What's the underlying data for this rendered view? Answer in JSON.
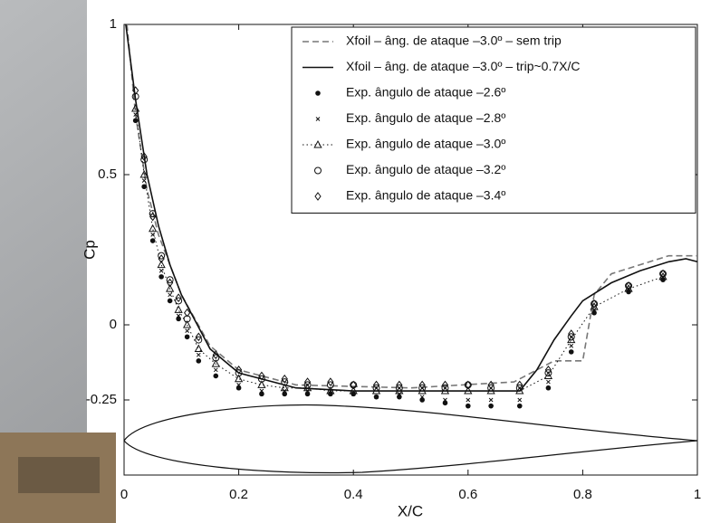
{
  "chart_data": {
    "type": "line",
    "xlabel": "X/C",
    "ylabel": "Cp",
    "xlim": [
      0,
      1
    ],
    "ylim": [
      -0.5,
      1
    ],
    "xticks": [
      0,
      0.2,
      0.4,
      0.6,
      0.8,
      1
    ],
    "yticks": [
      -0.25,
      0,
      0.5,
      1
    ],
    "legend": "upper right",
    "series": [
      {
        "name": "Xfoil – âng. de ataque –3.0º – sem trip",
        "color": "#777777",
        "style": "dashed",
        "x": [
          0.005,
          0.02,
          0.04,
          0.06,
          0.1,
          0.15,
          0.2,
          0.3,
          0.5,
          0.68,
          0.72,
          0.75,
          0.78,
          0.8,
          0.82,
          0.85,
          0.9,
          0.95,
          1
        ],
        "values": [
          1,
          0.7,
          0.45,
          0.3,
          0.1,
          -0.07,
          -0.15,
          -0.2,
          -0.21,
          -0.19,
          -0.15,
          -0.12,
          -0.12,
          -0.12,
          0.1,
          0.17,
          0.2,
          0.23,
          0.23
        ]
      },
      {
        "name": "Xfoil – âng. de ataque –3.0º – trip~0.7X/C",
        "color": "#111111",
        "style": "solid",
        "x": [
          0.003,
          0.02,
          0.04,
          0.06,
          0.08,
          0.1,
          0.15,
          0.2,
          0.3,
          0.4,
          0.5,
          0.6,
          0.69,
          0.72,
          0.75,
          0.78,
          0.8,
          0.85,
          0.9,
          0.95,
          0.98,
          1
        ],
        "values": [
          1,
          0.75,
          0.5,
          0.33,
          0.2,
          0.1,
          -0.08,
          -0.16,
          -0.21,
          -0.22,
          -0.22,
          -0.22,
          -0.22,
          -0.15,
          -0.05,
          0.03,
          0.08,
          0.14,
          0.18,
          0.21,
          0.22,
          0.21
        ]
      },
      {
        "name": "Exp. ângulo de ataque –2.6º",
        "color": "#111111",
        "marker": "dot",
        "x": [
          0.02,
          0.035,
          0.05,
          0.065,
          0.08,
          0.095,
          0.11,
          0.13,
          0.16,
          0.2,
          0.24,
          0.28,
          0.32,
          0.36,
          0.4,
          0.44,
          0.48,
          0.52,
          0.56,
          0.6,
          0.64,
          0.69,
          0.74,
          0.78,
          0.82,
          0.88,
          0.94
        ],
        "values": [
          0.68,
          0.46,
          0.28,
          0.16,
          0.08,
          0.02,
          -0.04,
          -0.12,
          -0.17,
          -0.21,
          -0.23,
          -0.23,
          -0.23,
          -0.23,
          -0.23,
          -0.24,
          -0.24,
          -0.25,
          -0.26,
          -0.27,
          -0.27,
          -0.27,
          -0.21,
          -0.09,
          0.04,
          0.11,
          0.15
        ]
      },
      {
        "name": "Exp. ângulo de ataque –2.8º",
        "color": "#111111",
        "marker": "cross",
        "x": [
          0.02,
          0.035,
          0.05,
          0.065,
          0.08,
          0.095,
          0.11,
          0.13,
          0.16,
          0.2,
          0.24,
          0.28,
          0.32,
          0.36,
          0.4,
          0.44,
          0.48,
          0.52,
          0.56,
          0.6,
          0.64,
          0.69,
          0.74,
          0.78,
          0.82,
          0.88,
          0.94
        ],
        "values": [
          0.7,
          0.48,
          0.3,
          0.18,
          0.1,
          0.03,
          -0.02,
          -0.1,
          -0.15,
          -0.2,
          -0.22,
          -0.22,
          -0.22,
          -0.22,
          -0.23,
          -0.24,
          -0.23,
          -0.24,
          -0.25,
          -0.25,
          -0.25,
          -0.25,
          -0.19,
          -0.07,
          0.05,
          0.12,
          0.16
        ]
      },
      {
        "name": "Exp. ângulo de ataque –3.0º",
        "color": "#111111",
        "marker": "triangle",
        "style": "dotted",
        "x": [
          0.02,
          0.035,
          0.05,
          0.065,
          0.08,
          0.095,
          0.11,
          0.13,
          0.16,
          0.2,
          0.24,
          0.28,
          0.32,
          0.36,
          0.4,
          0.44,
          0.48,
          0.52,
          0.56,
          0.6,
          0.64,
          0.69,
          0.74,
          0.78,
          0.82,
          0.88,
          0.94
        ],
        "values": [
          0.72,
          0.5,
          0.32,
          0.2,
          0.12,
          0.05,
          0.0,
          -0.08,
          -0.13,
          -0.18,
          -0.2,
          -0.21,
          -0.21,
          -0.22,
          -0.22,
          -0.22,
          -0.22,
          -0.22,
          -0.22,
          -0.22,
          -0.22,
          -0.22,
          -0.17,
          -0.05,
          0.06,
          0.12,
          0.16
        ]
      },
      {
        "name": "Exp. ângulo de ataque –3.2º",
        "color": "#111111",
        "marker": "circle",
        "x": [
          0.02,
          0.035,
          0.05,
          0.065,
          0.08,
          0.095,
          0.11,
          0.13,
          0.16,
          0.2,
          0.24,
          0.28,
          0.32,
          0.36,
          0.4,
          0.44,
          0.48,
          0.52,
          0.56,
          0.6,
          0.64,
          0.69,
          0.74,
          0.78,
          0.82,
          0.88,
          0.94
        ],
        "values": [
          0.76,
          0.55,
          0.37,
          0.23,
          0.15,
          0.08,
          0.02,
          -0.05,
          -0.11,
          -0.16,
          -0.18,
          -0.19,
          -0.2,
          -0.2,
          -0.2,
          -0.21,
          -0.21,
          -0.21,
          -0.21,
          -0.2,
          -0.21,
          -0.21,
          -0.16,
          -0.04,
          0.07,
          0.13,
          0.17
        ]
      },
      {
        "name": "Exp. ângulo de ataque –3.4º",
        "color": "#111111",
        "marker": "diamond",
        "x": [
          0.02,
          0.035,
          0.05,
          0.065,
          0.08,
          0.095,
          0.11,
          0.13,
          0.16,
          0.2,
          0.24,
          0.28,
          0.32,
          0.36,
          0.4,
          0.44,
          0.48,
          0.52,
          0.56,
          0.6,
          0.64,
          0.69,
          0.74,
          0.78,
          0.82,
          0.88,
          0.94
        ],
        "values": [
          0.78,
          0.56,
          0.36,
          0.22,
          0.14,
          0.09,
          0.04,
          -0.04,
          -0.1,
          -0.15,
          -0.17,
          -0.18,
          -0.19,
          -0.19,
          -0.2,
          -0.2,
          -0.2,
          -0.2,
          -0.2,
          -0.2,
          -0.2,
          -0.2,
          -0.15,
          -0.03,
          0.07,
          0.13,
          0.17
        ]
      }
    ]
  }
}
